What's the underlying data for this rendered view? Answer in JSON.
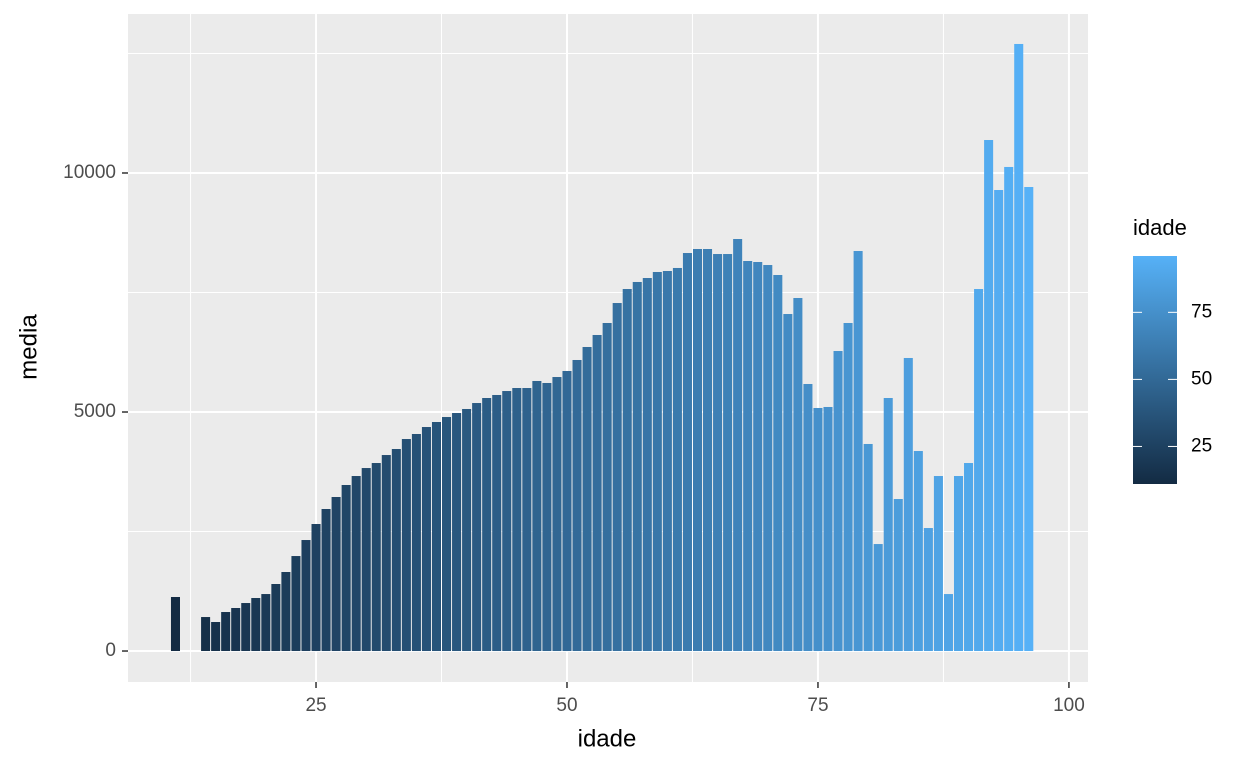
{
  "chart_data": {
    "type": "bar",
    "x_label": "idade",
    "y_label": "media",
    "x": [
      11,
      14,
      15,
      16,
      17,
      18,
      19,
      20,
      21,
      22,
      23,
      24,
      25,
      26,
      27,
      28,
      29,
      30,
      31,
      32,
      33,
      34,
      35,
      36,
      37,
      38,
      39,
      40,
      41,
      42,
      43,
      44,
      45,
      46,
      47,
      48,
      49,
      50,
      51,
      52,
      53,
      54,
      55,
      56,
      57,
      58,
      59,
      60,
      61,
      62,
      63,
      64,
      65,
      66,
      67,
      68,
      69,
      70,
      71,
      72,
      73,
      74,
      75,
      76,
      77,
      78,
      79,
      80,
      81,
      82,
      83,
      84,
      85,
      86,
      87,
      88,
      89,
      90,
      91,
      92,
      93,
      94,
      95,
      96
    ],
    "values": [
      1130,
      711,
      607,
      816,
      900,
      1004,
      1109,
      1192,
      1402,
      1653,
      1987,
      2322,
      2657,
      2971,
      3222,
      3473,
      3661,
      3828,
      3933,
      4100,
      4226,
      4435,
      4540,
      4686,
      4791,
      4895,
      4979,
      5063,
      5188,
      5293,
      5356,
      5439,
      5502,
      5502,
      5649,
      5607,
      5732,
      5858,
      6088,
      6360,
      6611,
      6862,
      7280,
      7573,
      7720,
      7803,
      7929,
      7950,
      8013,
      8326,
      8410,
      8410,
      8305,
      8305,
      8619,
      8159,
      8138,
      8075,
      7866,
      7050,
      7385,
      5586,
      5084,
      5105,
      6276,
      6862,
      8368,
      4331,
      2238,
      5293,
      3180,
      6130,
      4184,
      2573,
      3661,
      1192,
      3661,
      3933,
      7573,
      10690,
      9644,
      10126,
      12699,
      9707
    ],
    "xlim": [
      6.27,
      101.9
    ],
    "ylim": [
      -648,
      13326
    ],
    "xticks": [
      25,
      50,
      75,
      100
    ],
    "yticks": [
      0,
      5000,
      10000
    ],
    "grid": true,
    "color_low": "#132B43",
    "color_high": "#56B1F7",
    "legend_title": "idade",
    "legend_ticks": [
      25,
      50,
      75
    ]
  }
}
